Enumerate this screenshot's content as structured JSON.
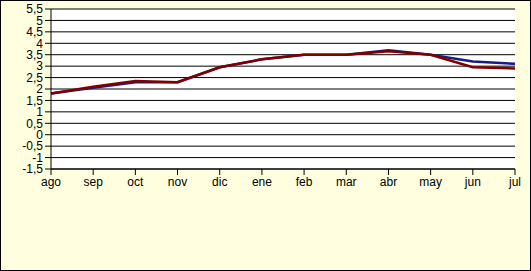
{
  "chart_data": {
    "type": "line",
    "categories": [
      "ago",
      "sep",
      "oct",
      "nov",
      "dic",
      "ene",
      "feb",
      "mar",
      "abr",
      "may",
      "jun",
      "jul"
    ],
    "series": [
      {
        "color": "#1a1a80",
        "values": [
          1.8,
          2.05,
          2.3,
          2.3,
          2.95,
          3.3,
          3.5,
          3.5,
          3.7,
          3.5,
          3.2,
          3.1
        ]
      },
      {
        "color": "#800000",
        "values": [
          1.8,
          2.1,
          2.35,
          2.3,
          2.95,
          3.3,
          3.5,
          3.5,
          3.65,
          3.5,
          2.95,
          2.9
        ]
      }
    ],
    "ylim": [
      -1.5,
      5.5
    ],
    "yticks": [
      {
        "value": -1.5,
        "label": "-1,5"
      },
      -1,
      {
        "value": -0.5,
        "label": "-0,5"
      },
      0,
      {
        "value": 0.5,
        "label": "0,5"
      },
      1,
      {
        "value": 1.5,
        "label": "1,5"
      },
      2,
      {
        "value": 2.5,
        "label": "2,5"
      },
      3,
      {
        "value": 3.5,
        "label": "3,5"
      },
      4,
      {
        "value": 4.5,
        "label": "4,5"
      },
      5,
      {
        "value": 5.5,
        "label": "5,5"
      }
    ],
    "grid": true
  }
}
